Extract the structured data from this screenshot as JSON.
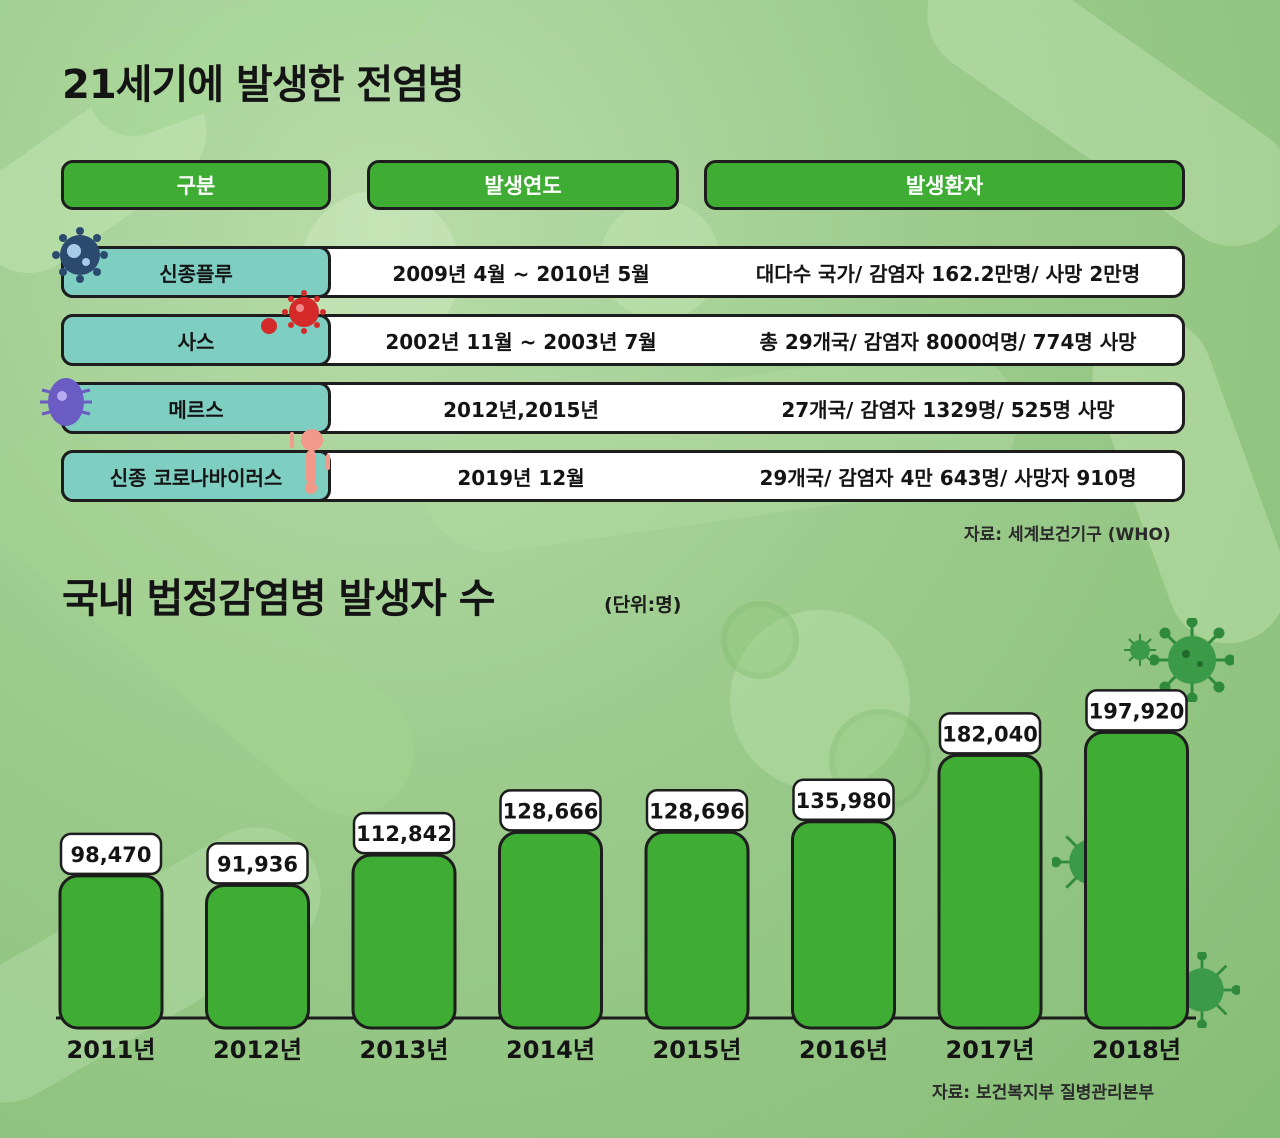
{
  "table": {
    "title": "21세기에 발생한 전염병",
    "headers": [
      "구분",
      "발생연도",
      "발생환자"
    ],
    "rows": [
      {
        "name": "신종플루",
        "year": "2009년 4월 ~ 2010년 5월",
        "patients": "대다수 국가/ 감염자 162.2만명/ 사망 2만명",
        "icon": "virus-blue-icon"
      },
      {
        "name": "사스",
        "year": "2002년 11월 ~ 2003년 7월",
        "patients": "총 29개국/ 감염자 8000여명/ 774명 사망",
        "icon": "virus-red-icon"
      },
      {
        "name": "메르스",
        "year": "2012년,2015년",
        "patients": "27개국/ 감염자 1329명/ 525명 사망",
        "icon": "virus-purple-icon"
      },
      {
        "name": "신종 코로나바이러스",
        "year": "2019년 12월",
        "patients": "29개국/ 감염자 4만 643명/ 사망자 910명",
        "icon": "virus-pink-icon"
      }
    ],
    "source": "자료: 세계보건기구 (WHO)"
  },
  "chart_data": {
    "type": "bar",
    "title": "국내 법정감염병 발생자 수",
    "unit": "(단위:명)",
    "categories": [
      "2011년",
      "2012년",
      "2013년",
      "2014년",
      "2015년",
      "2016년",
      "2017년",
      "2018년"
    ],
    "values": [
      98470,
      91936,
      112842,
      128666,
      128696,
      135980,
      182040,
      197920
    ],
    "value_labels": [
      "98,470",
      "91,936",
      "112,842",
      "128,666",
      "128,696",
      "135,980",
      "182,040",
      "197,920"
    ],
    "source": "자료: 보건복지부 질병관리본부",
    "bar_color": "#3fad34"
  },
  "colors": {
    "header_green": "#3fad34",
    "name_teal": "#7ecfc2",
    "border": "#1d1d1d"
  }
}
